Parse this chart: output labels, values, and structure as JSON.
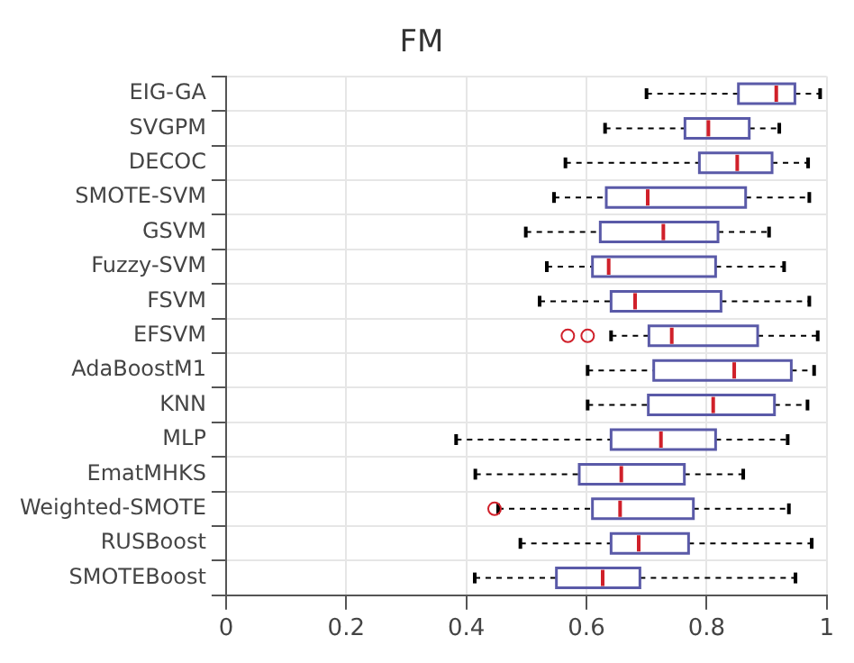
{
  "chart_data": {
    "type": "box",
    "title": "FM",
    "orientation": "horizontal",
    "categories": [
      "EIG-GA",
      "SVGPM",
      "DECOC",
      "SMOTE-SVM",
      "GSVM",
      "Fuzzy-SVM",
      "FSVM",
      "EFSVM",
      "AdaBoostM1",
      "KNN",
      "MLP",
      "EmatMHKS",
      "Weighted-SMOTE",
      "RUSBoost",
      "SMOTEBoost"
    ],
    "xlim": [
      0,
      1
    ],
    "xticks": [
      0,
      0.2,
      0.4,
      0.6,
      0.8,
      1
    ],
    "grid": true,
    "legend": false,
    "series": [
      {
        "color": "#5a5aa8",
        "boxes": [
          {
            "low": 0.7,
            "q1": 0.853,
            "median": 0.916,
            "q3": 0.947,
            "high": 0.989
          },
          {
            "low": 0.631,
            "q1": 0.764,
            "median": 0.803,
            "q3": 0.871,
            "high": 0.921
          },
          {
            "low": 0.565,
            "q1": 0.788,
            "median": 0.851,
            "q3": 0.909,
            "high": 0.969
          },
          {
            "low": 0.546,
            "q1": 0.633,
            "median": 0.702,
            "q3": 0.865,
            "high": 0.971
          },
          {
            "low": 0.499,
            "q1": 0.623,
            "median": 0.728,
            "q3": 0.819,
            "high": 0.904
          },
          {
            "low": 0.534,
            "q1": 0.61,
            "median": 0.637,
            "q3": 0.815,
            "high": 0.929
          },
          {
            "low": 0.522,
            "q1": 0.641,
            "median": 0.681,
            "q3": 0.824,
            "high": 0.971
          },
          {
            "low": 0.641,
            "q1": 0.704,
            "median": 0.742,
            "q3": 0.885,
            "high": 0.985,
            "outliers": [
              0.569,
              0.602
            ]
          },
          {
            "low": 0.602,
            "q1": 0.712,
            "median": 0.846,
            "q3": 0.941,
            "high": 0.979
          },
          {
            "low": 0.602,
            "q1": 0.703,
            "median": 0.811,
            "q3": 0.913,
            "high": 0.968
          },
          {
            "low": 0.383,
            "q1": 0.641,
            "median": 0.724,
            "q3": 0.815,
            "high": 0.935
          },
          {
            "low": 0.415,
            "q1": 0.588,
            "median": 0.658,
            "q3": 0.763,
            "high": 0.861
          },
          {
            "low": 0.453,
            "q1": 0.61,
            "median": 0.656,
            "q3": 0.778,
            "high": 0.937,
            "outliers": [
              0.447
            ]
          },
          {
            "low": 0.49,
            "q1": 0.641,
            "median": 0.687,
            "q3": 0.77,
            "high": 0.975
          },
          {
            "low": 0.414,
            "q1": 0.55,
            "median": 0.627,
            "q3": 0.689,
            "high": 0.948
          }
        ]
      }
    ]
  }
}
